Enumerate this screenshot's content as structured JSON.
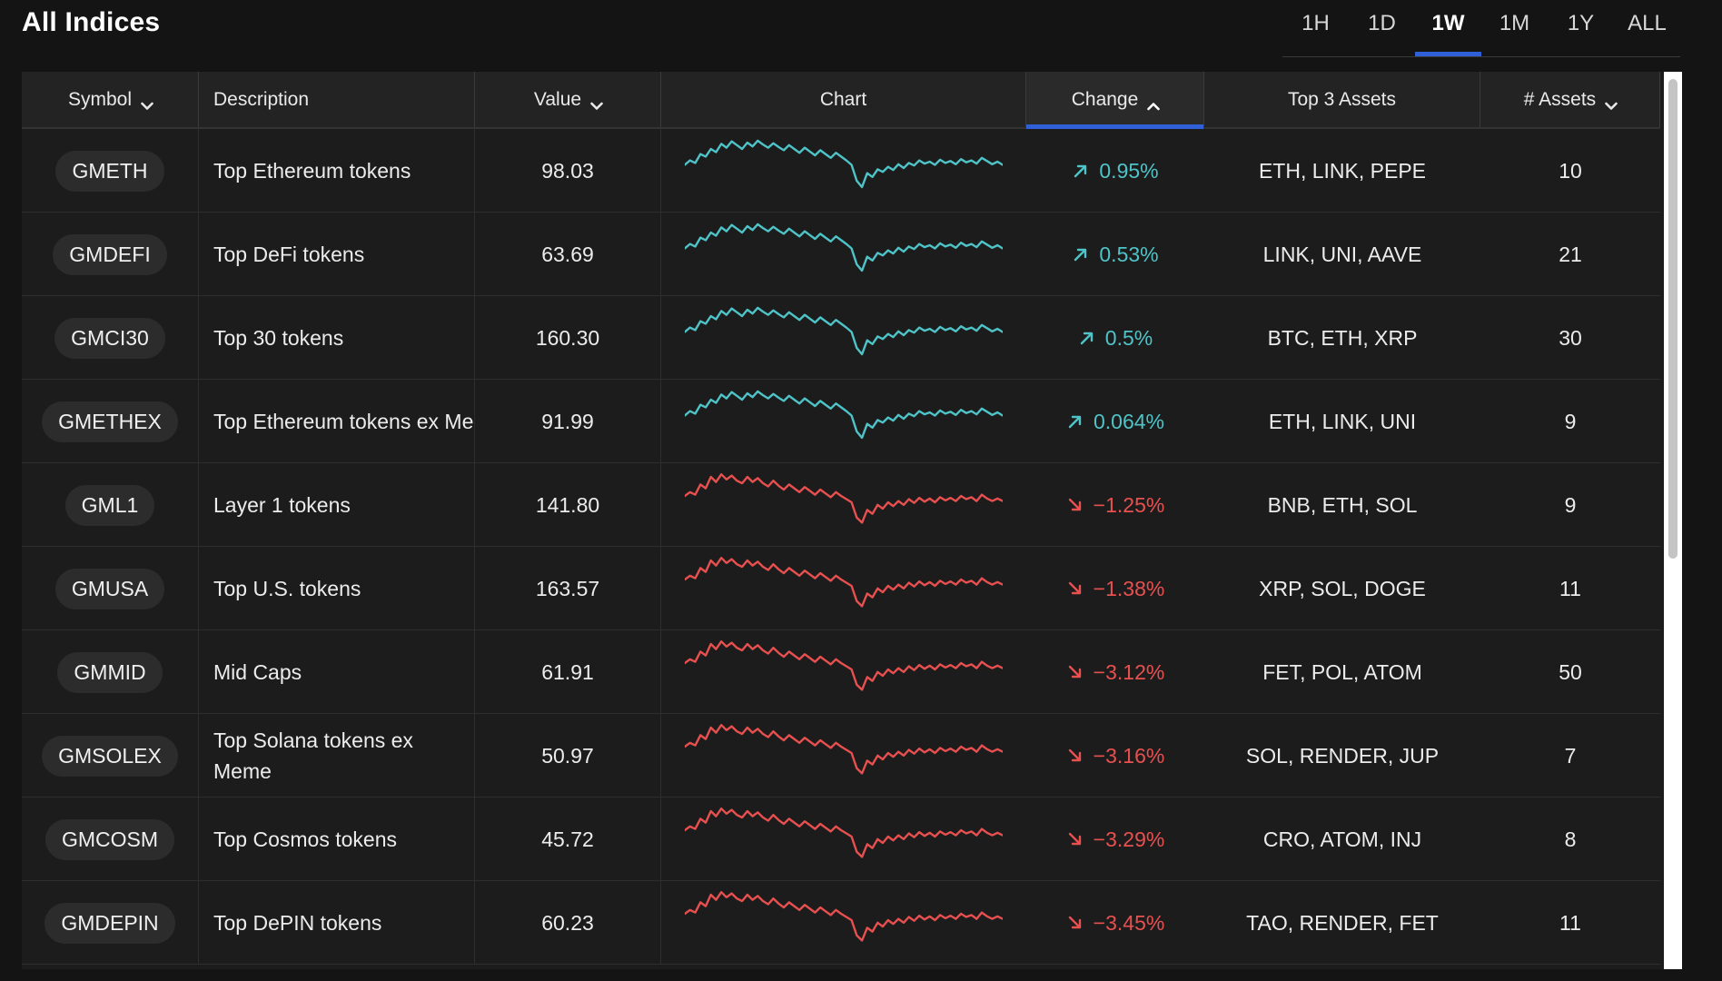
{
  "page": {
    "title": "All Indices"
  },
  "time_ranges": {
    "options": [
      "1H",
      "1D",
      "1W",
      "1M",
      "1Y",
      "ALL"
    ],
    "selected": "1W"
  },
  "table": {
    "columns": {
      "symbol": "Symbol",
      "description": "Description",
      "value": "Value",
      "chart": "Chart",
      "change": "Change",
      "top3": "Top 3 Assets",
      "assets": "# Assets"
    },
    "sorted_column": "change",
    "rows": [
      {
        "symbol": "GMETH",
        "description": "Top Ethereum tokens",
        "value": "98.03",
        "change": "0.95%",
        "direction": "up",
        "top3": "ETH, LINK, PEPE",
        "assets": "10"
      },
      {
        "symbol": "GMDEFI",
        "description": "Top DeFi tokens",
        "value": "63.69",
        "change": "0.53%",
        "direction": "up",
        "top3": "LINK, UNI, AAVE",
        "assets": "21"
      },
      {
        "symbol": "GMCI30",
        "description": "Top 30 tokens",
        "value": "160.30",
        "change": "0.5%",
        "direction": "up",
        "top3": "BTC, ETH, XRP",
        "assets": "30"
      },
      {
        "symbol": "GMETHEX",
        "description": "Top Ethereum tokens ex Me",
        "value": "91.99",
        "change": "0.064%",
        "direction": "up",
        "top3": "ETH, LINK, UNI",
        "assets": "9"
      },
      {
        "symbol": "GML1",
        "description": "Layer 1 tokens",
        "value": "141.80",
        "change": "−1.25%",
        "direction": "down",
        "top3": "BNB, ETH, SOL",
        "assets": "9"
      },
      {
        "symbol": "GMUSA",
        "description": "Top U.S. tokens",
        "value": "163.57",
        "change": "−1.38%",
        "direction": "down",
        "top3": "XRP, SOL, DOGE",
        "assets": "11"
      },
      {
        "symbol": "GMMID",
        "description": "Mid Caps",
        "value": "61.91",
        "change": "−3.12%",
        "direction": "down",
        "top3": "FET, POL, ATOM",
        "assets": "50"
      },
      {
        "symbol": "GMSOLEX",
        "description": "Top Solana tokens ex Meme",
        "value": "50.97",
        "change": "−3.16%",
        "direction": "down",
        "top3": "SOL, RENDER, JUP",
        "assets": "7"
      },
      {
        "symbol": "GMCOSM",
        "description": "Top Cosmos tokens",
        "value": "45.72",
        "change": "−3.29%",
        "direction": "down",
        "top3": "CRO, ATOM, INJ",
        "assets": "8"
      },
      {
        "symbol": "GMDEPIN",
        "description": "Top DePIN tokens",
        "value": "60.23",
        "change": "−3.45%",
        "direction": "down",
        "top3": "TAO, RENDER, FET",
        "assets": "11"
      }
    ]
  },
  "colors": {
    "up": "#4fc4c8",
    "down": "#e85050",
    "accent": "#3060d8"
  },
  "icons": {
    "sort_desc": "chevron-down-icon",
    "sort_asc": "chevron-up-icon",
    "up": "arrow-up-right-icon",
    "down": "arrow-down-right-icon"
  }
}
